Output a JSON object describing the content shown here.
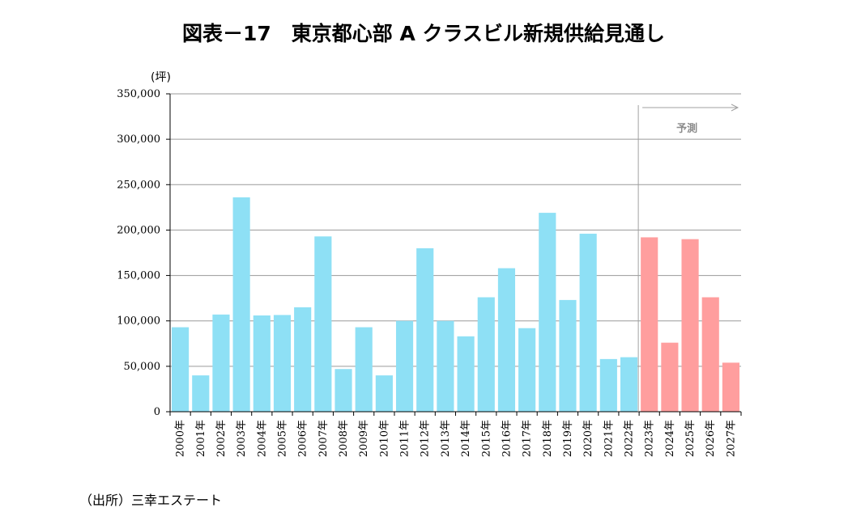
{
  "title": "図表－17　東京都心部 A クラスビル新規供給見通し",
  "unit_label": "(坪)",
  "source_note": "（出所）三幸エステート",
  "forecast_label": "予測",
  "colors": {
    "actual": "#8ee0f5",
    "forecast": "#ff9e9e",
    "grid": "#9a9a9a",
    "divider": "#a0a0a0"
  },
  "chart_data": {
    "type": "bar",
    "title": "図表－17　東京都心部 A クラスビル新規供給見通し",
    "ylabel": "(坪)",
    "ylim": [
      0,
      350000
    ],
    "yticks": [
      "350,000",
      "300,000",
      "250,000",
      "200,000",
      "150,000",
      "100,000",
      "50,000",
      "0"
    ],
    "ytick_values": [
      350000,
      300000,
      250000,
      200000,
      150000,
      100000,
      50000,
      0
    ],
    "grid": true,
    "categories": [
      "2000年",
      "2001年",
      "2002年",
      "2003年",
      "2004年",
      "2005年",
      "2006年",
      "2007年",
      "2008年",
      "2009年",
      "2010年",
      "2011年",
      "2012年",
      "2013年",
      "2014年",
      "2015年",
      "2016年",
      "2017年",
      "2018年",
      "2019年",
      "2020年",
      "2021年",
      "2022年",
      "2023年",
      "2024年",
      "2025年",
      "2026年",
      "2027年"
    ],
    "values": [
      93000,
      40000,
      107000,
      236000,
      106000,
      106500,
      115000,
      193000,
      47000,
      93000,
      40000,
      100000,
      180000,
      100000,
      83000,
      126000,
      158000,
      92000,
      219000,
      123000,
      196000,
      58000,
      60000,
      192000,
      76000,
      190000,
      126000,
      54000
    ],
    "forecast_start": "2023年"
  }
}
